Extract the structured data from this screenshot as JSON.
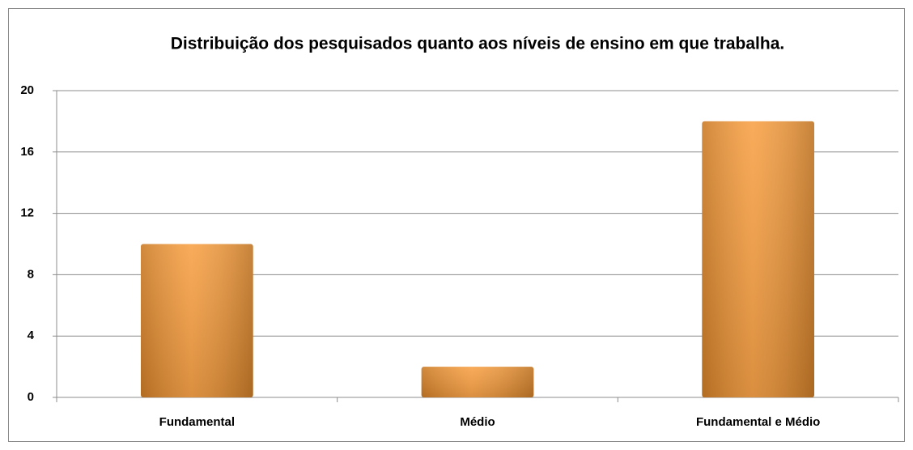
{
  "chart_data": {
    "type": "bar",
    "title": "Distribuição dos pesquisados quanto aos níveis de ensino em que trabalha.",
    "categories": [
      "Fundamental",
      "Médio",
      "Fundamental e Médio"
    ],
    "values": [
      10,
      2,
      18
    ],
    "color": "#f7962f",
    "ylim": [
      0,
      20
    ],
    "yticks": [
      0,
      4,
      8,
      12,
      16,
      20
    ],
    "grid": true
  }
}
